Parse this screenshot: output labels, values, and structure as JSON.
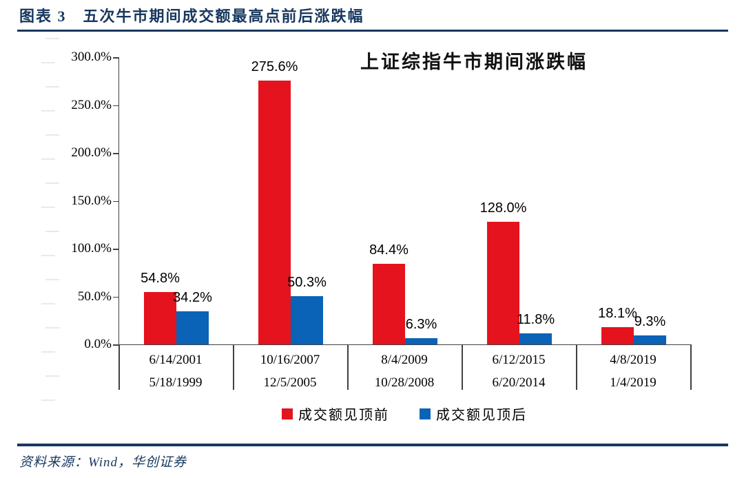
{
  "header": {
    "title": "图表 3　五次牛市期间成交额最高点前后涨跌幅"
  },
  "footer": {
    "source": "资料来源：Wind，华创证券"
  },
  "colors": {
    "accent_navy": "#17375e",
    "bar_red": "#e4131e",
    "bar_blue": "#0a63b6",
    "axis": "#404040"
  },
  "chart_data": {
    "type": "bar",
    "title": "上证综指牛市期间涨跌幅",
    "categories": [
      {
        "peak_date": "6/14/2001",
        "start_date": "5/18/1999"
      },
      {
        "peak_date": "10/16/2007",
        "start_date": "12/5/2005"
      },
      {
        "peak_date": "8/4/2009",
        "start_date": "10/28/2008"
      },
      {
        "peak_date": "6/12/2015",
        "start_date": "6/20/2014"
      },
      {
        "peak_date": "4/8/2019",
        "start_date": "1/4/2019"
      }
    ],
    "series": [
      {
        "name": "成交额见顶前",
        "color": "#e4131e",
        "values": [
          54.8,
          275.6,
          84.4,
          128.0,
          18.1
        ],
        "labels": [
          "54.8%",
          "275.6%",
          "84.4%",
          "128.0%",
          "18.1%"
        ]
      },
      {
        "name": "成交额见顶后",
        "color": "#0a63b6",
        "values": [
          34.2,
          50.3,
          6.3,
          11.8,
          9.3
        ],
        "labels": [
          "34.2%",
          "50.3%",
          "6.3%",
          "11.8%",
          "9.3%"
        ]
      }
    ],
    "ylim": [
      0,
      300
    ],
    "yticks": [
      {
        "value": 0,
        "label": "0.0%"
      },
      {
        "value": 50,
        "label": "50.0%"
      },
      {
        "value": 100,
        "label": "100.0%"
      },
      {
        "value": 150,
        "label": "150.0%"
      },
      {
        "value": 200,
        "label": "200.0%"
      },
      {
        "value": 250,
        "label": "250.0%"
      },
      {
        "value": 300,
        "label": "300.0%"
      }
    ],
    "grid": false,
    "legend_position": "bottom",
    "xlabel": "",
    "ylabel": ""
  }
}
